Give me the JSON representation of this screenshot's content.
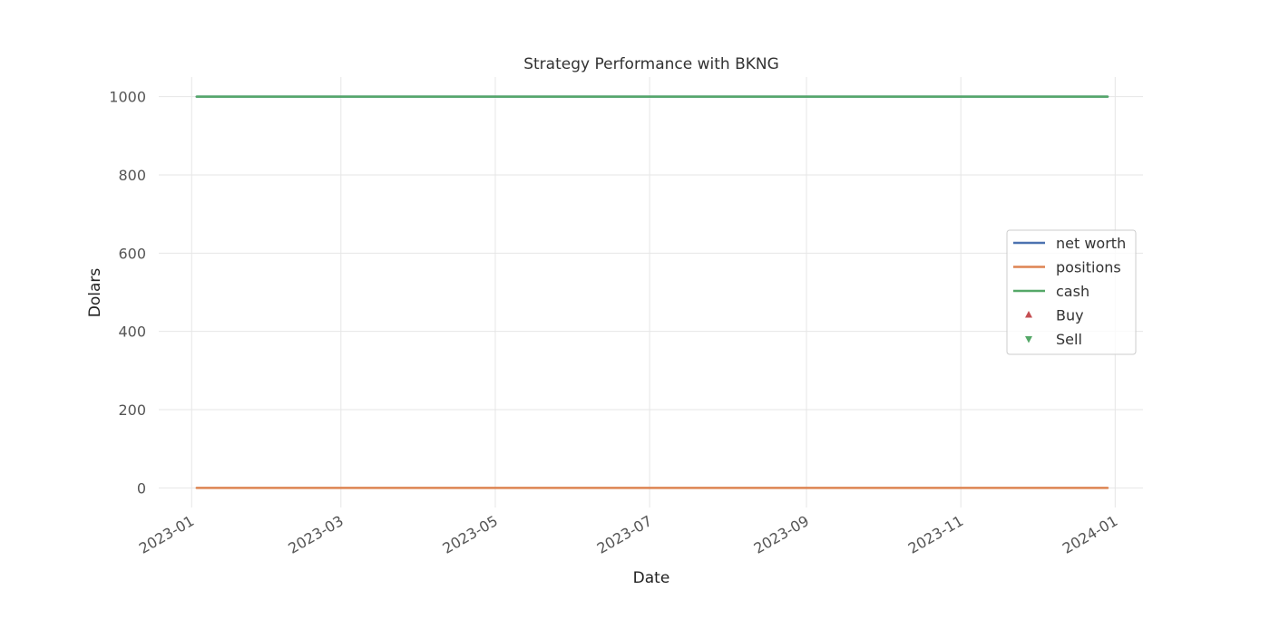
{
  "chart_data": {
    "type": "line",
    "title": "Strategy Performance with BKNG",
    "xlabel": "Date",
    "ylabel": "Dolars",
    "x_range": [
      "2023-01-03",
      "2023-12-29"
    ],
    "xlim": [
      "2022-12-19",
      "2024-01-12"
    ],
    "ylim": [
      -50,
      1050
    ],
    "x_ticks": [
      "2023-01",
      "2023-03",
      "2023-05",
      "2023-07",
      "2023-09",
      "2023-11",
      "2024-01"
    ],
    "y_ticks": [
      0,
      200,
      400,
      600,
      800,
      1000
    ],
    "grid": true,
    "legend_position": "center-right",
    "series": [
      {
        "name": "net worth",
        "kind": "line",
        "color": "#4c72b0",
        "x": [
          "2023-01-03",
          "2023-12-29"
        ],
        "values": [
          1000,
          1000
        ]
      },
      {
        "name": "positions",
        "kind": "line",
        "color": "#dd8452",
        "x": [
          "2023-01-03",
          "2023-12-29"
        ],
        "values": [
          0,
          0
        ]
      },
      {
        "name": "cash",
        "kind": "line",
        "color": "#55a868",
        "x": [
          "2023-01-03",
          "2023-12-29"
        ],
        "values": [
          1000,
          1000
        ]
      },
      {
        "name": "Buy",
        "kind": "marker",
        "marker": "triangle-up",
        "color": "#c44e52",
        "x": [],
        "values": []
      },
      {
        "name": "Sell",
        "kind": "marker",
        "marker": "triangle-down",
        "color": "#55a868",
        "x": [],
        "values": []
      }
    ]
  }
}
